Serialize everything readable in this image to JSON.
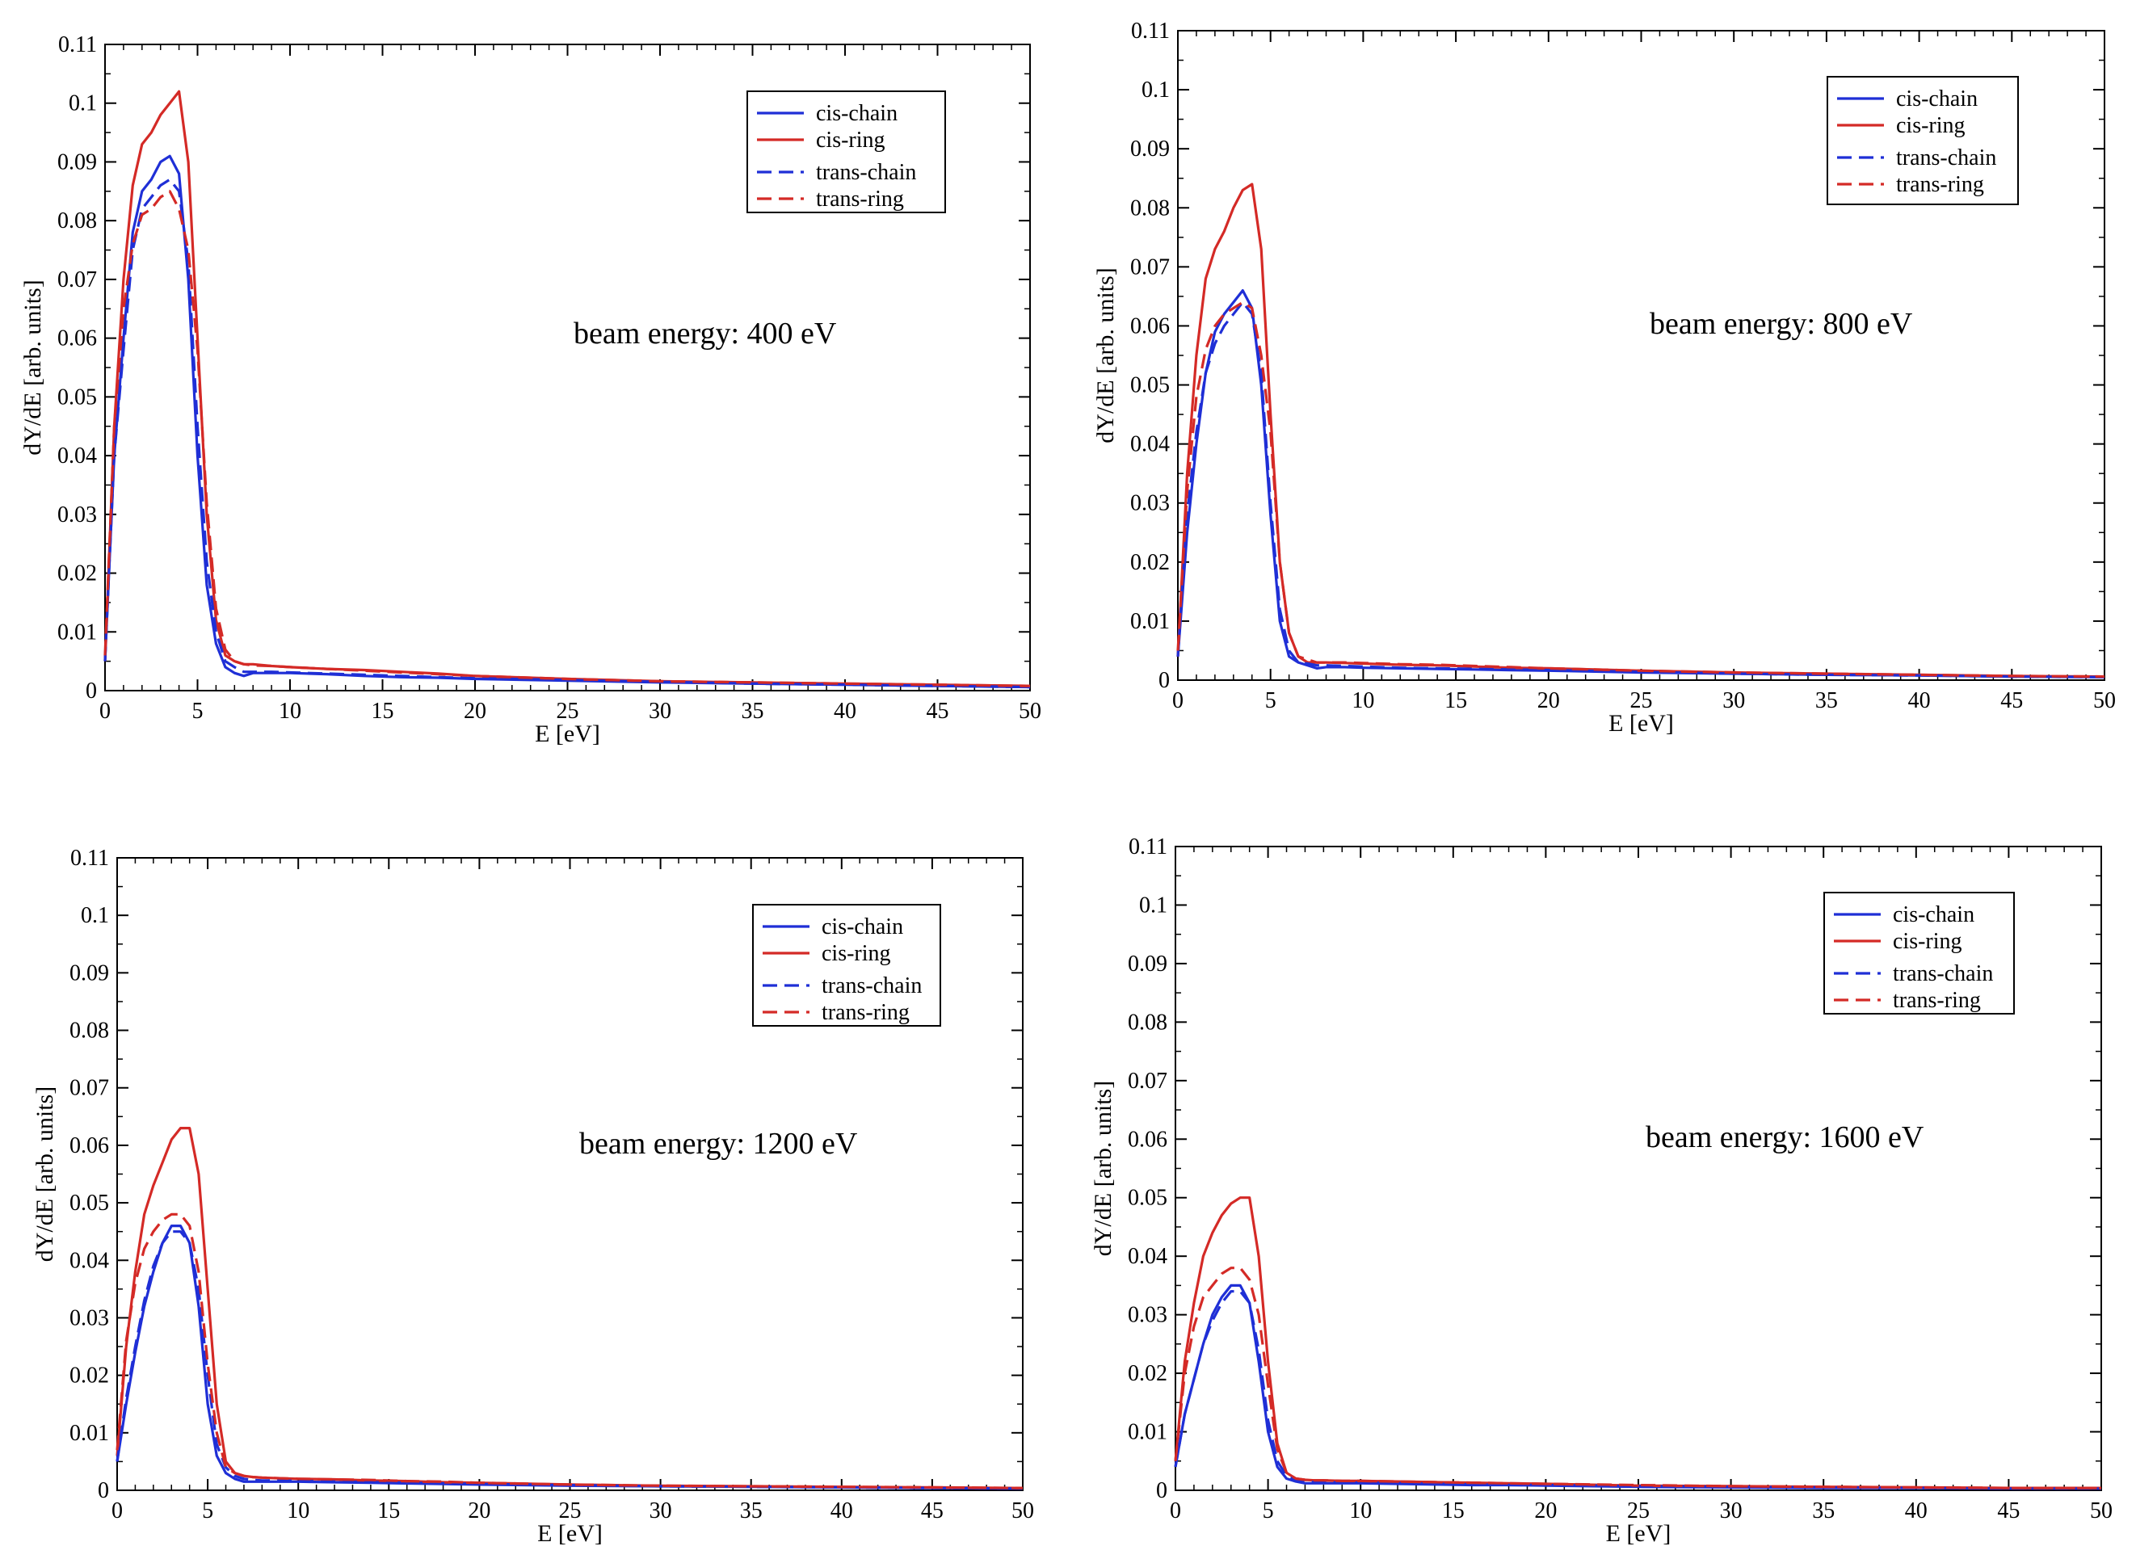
{
  "figure": {
    "colors": {
      "cis-chain": "#1f2fd6",
      "cis-ring": "#d42a26",
      "trans-chain": "#1f2fd6",
      "trans-ring": "#d42a26"
    }
  },
  "chart_data": [
    {
      "type": "line",
      "title": "",
      "annotation": "beam energy: 400 eV",
      "xlabel": "E [eV]",
      "ylabel": "dY/dE [arb. units]",
      "xlim": [
        0,
        50
      ],
      "ylim": [
        0,
        0.11
      ],
      "xticks": [
        0,
        5,
        10,
        15,
        20,
        25,
        30,
        35,
        40,
        45,
        50
      ],
      "yticks": [
        0,
        0.01,
        0.02,
        0.03,
        0.04,
        0.05,
        0.06,
        0.07,
        0.08,
        0.09,
        0.1,
        0.11
      ],
      "legend_position": "top-right",
      "x": [
        0,
        0.5,
        1,
        1.5,
        2,
        2.5,
        3,
        3.5,
        4,
        4.5,
        5,
        5.5,
        6,
        6.5,
        7,
        7.5,
        8,
        9,
        10,
        12,
        14,
        16,
        18,
        20,
        25,
        30,
        35,
        40,
        45,
        50
      ],
      "series": [
        {
          "name": "cis-chain",
          "style": "solid",
          "color": "#1f2fd6",
          "values": [
            0.005,
            0.04,
            0.06,
            0.078,
            0.085,
            0.087,
            0.09,
            0.091,
            0.088,
            0.07,
            0.04,
            0.018,
            0.008,
            0.004,
            0.003,
            0.0025,
            0.003,
            0.003,
            0.003,
            0.0028,
            0.0025,
            0.0023,
            0.0022,
            0.002,
            0.0017,
            0.0014,
            0.0012,
            0.001,
            0.0008,
            0.0006
          ]
        },
        {
          "name": "cis-ring",
          "style": "solid",
          "color": "#d42a26",
          "values": [
            0.005,
            0.045,
            0.07,
            0.086,
            0.093,
            0.095,
            0.098,
            0.1,
            0.102,
            0.09,
            0.06,
            0.03,
            0.012,
            0.006,
            0.005,
            0.0045,
            0.0045,
            0.0042,
            0.004,
            0.0037,
            0.0035,
            0.0032,
            0.0029,
            0.0025,
            0.002,
            0.0016,
            0.0014,
            0.0012,
            0.001,
            0.0008
          ]
        },
        {
          "name": "trans-chain",
          "style": "dashed",
          "color": "#1f2fd6",
          "values": [
            0.005,
            0.04,
            0.058,
            0.075,
            0.082,
            0.084,
            0.086,
            0.087,
            0.085,
            0.073,
            0.045,
            0.022,
            0.01,
            0.005,
            0.004,
            0.0032,
            0.0032,
            0.0032,
            0.0031,
            0.0029,
            0.0027,
            0.0025,
            0.0023,
            0.0021,
            0.0018,
            0.0015,
            0.0012,
            0.001,
            0.0008,
            0.0006
          ]
        },
        {
          "name": "trans-ring",
          "style": "dashed",
          "color": "#d42a26",
          "values": [
            0.006,
            0.045,
            0.065,
            0.076,
            0.081,
            0.082,
            0.084,
            0.085,
            0.082,
            0.075,
            0.058,
            0.032,
            0.014,
            0.007,
            0.005,
            0.0045,
            0.0043,
            0.0042,
            0.004,
            0.0037,
            0.0034,
            0.0031,
            0.0028,
            0.0025,
            0.002,
            0.0016,
            0.0014,
            0.0012,
            0.001,
            0.0008
          ]
        }
      ]
    },
    {
      "type": "line",
      "title": "",
      "annotation": "beam energy: 800 eV",
      "xlabel": "E [eV]",
      "ylabel": "dY/dE [arb. units]",
      "xlim": [
        0,
        50
      ],
      "ylim": [
        0,
        0.11
      ],
      "xticks": [
        0,
        5,
        10,
        15,
        20,
        25,
        30,
        35,
        40,
        45,
        50
      ],
      "yticks": [
        0,
        0.01,
        0.02,
        0.03,
        0.04,
        0.05,
        0.06,
        0.07,
        0.08,
        0.09,
        0.1,
        0.11
      ],
      "legend_position": "top-right",
      "x": [
        0,
        0.5,
        1,
        1.5,
        2,
        2.5,
        3,
        3.5,
        4,
        4.5,
        5,
        5.5,
        6,
        6.5,
        7,
        7.5,
        8,
        9,
        10,
        12,
        14,
        16,
        18,
        20,
        25,
        30,
        35,
        40,
        45,
        50
      ],
      "series": [
        {
          "name": "cis-chain",
          "style": "solid",
          "color": "#1f2fd6",
          "values": [
            0.004,
            0.025,
            0.04,
            0.052,
            0.059,
            0.062,
            0.064,
            0.066,
            0.063,
            0.05,
            0.028,
            0.01,
            0.004,
            0.003,
            0.0025,
            0.002,
            0.0022,
            0.0022,
            0.0021,
            0.002,
            0.0019,
            0.0018,
            0.0017,
            0.0016,
            0.0013,
            0.0011,
            0.0009,
            0.0008,
            0.0006,
            0.0005
          ]
        },
        {
          "name": "cis-ring",
          "style": "solid",
          "color": "#d42a26",
          "values": [
            0.004,
            0.035,
            0.055,
            0.068,
            0.073,
            0.076,
            0.08,
            0.083,
            0.084,
            0.073,
            0.045,
            0.02,
            0.008,
            0.004,
            0.003,
            0.003,
            0.003,
            0.0029,
            0.0028,
            0.0026,
            0.0025,
            0.0023,
            0.0021,
            0.002,
            0.0016,
            0.0013,
            0.0011,
            0.0009,
            0.0007,
            0.0006
          ]
        },
        {
          "name": "trans-chain",
          "style": "dashed",
          "color": "#1f2fd6",
          "values": [
            0.004,
            0.028,
            0.042,
            0.052,
            0.057,
            0.06,
            0.062,
            0.064,
            0.062,
            0.052,
            0.03,
            0.012,
            0.005,
            0.003,
            0.0028,
            0.0025,
            0.0025,
            0.0024,
            0.0023,
            0.0021,
            0.002,
            0.0019,
            0.0018,
            0.0017,
            0.0014,
            0.0011,
            0.0009,
            0.0008,
            0.0006,
            0.0005
          ]
        },
        {
          "name": "trans-ring",
          "style": "dashed",
          "color": "#d42a26",
          "values": [
            0.005,
            0.032,
            0.048,
            0.056,
            0.06,
            0.062,
            0.063,
            0.064,
            0.063,
            0.055,
            0.042,
            0.02,
            0.008,
            0.004,
            0.0035,
            0.003,
            0.003,
            0.003,
            0.0029,
            0.0027,
            0.0026,
            0.0024,
            0.0022,
            0.002,
            0.0016,
            0.0013,
            0.0011,
            0.0009,
            0.0007,
            0.0006
          ]
        }
      ]
    },
    {
      "type": "line",
      "title": "",
      "annotation": "beam energy: 1200 eV",
      "xlabel": "E [eV]",
      "ylabel": "dY/dE [arb. units]",
      "xlim": [
        0,
        50
      ],
      "ylim": [
        0,
        0.11
      ],
      "xticks": [
        0,
        5,
        10,
        15,
        20,
        25,
        30,
        35,
        40,
        45,
        50
      ],
      "yticks": [
        0,
        0.01,
        0.02,
        0.03,
        0.04,
        0.05,
        0.06,
        0.07,
        0.08,
        0.09,
        0.1,
        0.11
      ],
      "legend_position": "top-right",
      "x": [
        0,
        0.5,
        1,
        1.5,
        2,
        2.5,
        3,
        3.5,
        4,
        4.5,
        5,
        5.5,
        6,
        6.5,
        7,
        7.5,
        8,
        9,
        10,
        12,
        14,
        16,
        18,
        20,
        25,
        30,
        35,
        40,
        45,
        50
      ],
      "series": [
        {
          "name": "cis-chain",
          "style": "solid",
          "color": "#1f2fd6",
          "values": [
            0.005,
            0.015,
            0.024,
            0.032,
            0.038,
            0.043,
            0.046,
            0.046,
            0.043,
            0.032,
            0.015,
            0.006,
            0.003,
            0.002,
            0.0015,
            0.0015,
            0.0015,
            0.0015,
            0.0015,
            0.0014,
            0.0013,
            0.0012,
            0.0011,
            0.001,
            0.0008,
            0.0007,
            0.0006,
            0.0005,
            0.0004,
            0.0003
          ]
        },
        {
          "name": "cis-ring",
          "style": "solid",
          "color": "#d42a26",
          "values": [
            0.006,
            0.025,
            0.038,
            0.048,
            0.053,
            0.057,
            0.061,
            0.063,
            0.063,
            0.055,
            0.035,
            0.015,
            0.005,
            0.003,
            0.0025,
            0.0023,
            0.0022,
            0.0021,
            0.002,
            0.0019,
            0.0017,
            0.0016,
            0.0014,
            0.0013,
            0.001,
            0.0008,
            0.0007,
            0.0006,
            0.0005,
            0.0004
          ]
        },
        {
          "name": "trans-chain",
          "style": "dashed",
          "color": "#1f2fd6",
          "values": [
            0.005,
            0.016,
            0.025,
            0.033,
            0.039,
            0.043,
            0.045,
            0.045,
            0.043,
            0.035,
            0.02,
            0.008,
            0.004,
            0.0025,
            0.002,
            0.0018,
            0.0017,
            0.0017,
            0.0016,
            0.0015,
            0.0014,
            0.0013,
            0.0012,
            0.0011,
            0.0009,
            0.0007,
            0.0006,
            0.0005,
            0.0004,
            0.0003
          ]
        },
        {
          "name": "trans-ring",
          "style": "dashed",
          "color": "#d42a26",
          "values": [
            0.007,
            0.026,
            0.036,
            0.042,
            0.045,
            0.047,
            0.048,
            0.048,
            0.046,
            0.038,
            0.022,
            0.01,
            0.004,
            0.003,
            0.0025,
            0.0023,
            0.0022,
            0.0021,
            0.002,
            0.0019,
            0.0018,
            0.0016,
            0.0015,
            0.0013,
            0.001,
            0.0008,
            0.0007,
            0.0006,
            0.0005,
            0.0004
          ]
        }
      ]
    },
    {
      "type": "line",
      "title": "",
      "annotation": "beam energy: 1600 eV",
      "xlabel": "E [eV]",
      "ylabel": "dY/dE [arb. units]",
      "xlim": [
        0,
        50
      ],
      "ylim": [
        0,
        0.11
      ],
      "xticks": [
        0,
        5,
        10,
        15,
        20,
        25,
        30,
        35,
        40,
        45,
        50
      ],
      "yticks": [
        0,
        0.01,
        0.02,
        0.03,
        0.04,
        0.05,
        0.06,
        0.07,
        0.08,
        0.09,
        0.1,
        0.11
      ],
      "legend_position": "top-right",
      "x": [
        0,
        0.5,
        1,
        1.5,
        2,
        2.5,
        3,
        3.5,
        4,
        4.5,
        5,
        5.5,
        6,
        6.5,
        7,
        7.5,
        8,
        9,
        10,
        12,
        14,
        16,
        18,
        20,
        25,
        30,
        35,
        40,
        45,
        50
      ],
      "series": [
        {
          "name": "cis-chain",
          "style": "solid",
          "color": "#1f2fd6",
          "values": [
            0.004,
            0.013,
            0.019,
            0.025,
            0.03,
            0.033,
            0.035,
            0.035,
            0.032,
            0.022,
            0.01,
            0.004,
            0.002,
            0.0015,
            0.0012,
            0.0012,
            0.0012,
            0.0012,
            0.0012,
            0.0011,
            0.001,
            0.0009,
            0.0009,
            0.0008,
            0.0006,
            0.0005,
            0.0004,
            0.0004,
            0.0003,
            0.0003
          ]
        },
        {
          "name": "cis-ring",
          "style": "solid",
          "color": "#d42a26",
          "values": [
            0.005,
            0.022,
            0.032,
            0.04,
            0.044,
            0.047,
            0.049,
            0.05,
            0.05,
            0.04,
            0.022,
            0.008,
            0.003,
            0.002,
            0.0018,
            0.0017,
            0.0017,
            0.0016,
            0.0016,
            0.0015,
            0.0014,
            0.0013,
            0.0012,
            0.0011,
            0.0008,
            0.0007,
            0.0006,
            0.0005,
            0.0004,
            0.0004
          ]
        },
        {
          "name": "trans-chain",
          "style": "dashed",
          "color": "#1f2fd6",
          "values": [
            0.004,
            0.013,
            0.019,
            0.025,
            0.029,
            0.032,
            0.034,
            0.034,
            0.032,
            0.024,
            0.012,
            0.005,
            0.0025,
            0.0017,
            0.0015,
            0.0014,
            0.0014,
            0.0013,
            0.0013,
            0.0012,
            0.0011,
            0.001,
            0.0009,
            0.0009,
            0.0007,
            0.0006,
            0.0005,
            0.0004,
            0.0003,
            0.0003
          ]
        },
        {
          "name": "trans-ring",
          "style": "dashed",
          "color": "#d42a26",
          "values": [
            0.005,
            0.02,
            0.028,
            0.033,
            0.035,
            0.037,
            0.038,
            0.038,
            0.036,
            0.03,
            0.018,
            0.007,
            0.003,
            0.002,
            0.0018,
            0.0017,
            0.0017,
            0.0016,
            0.0016,
            0.0015,
            0.0014,
            0.0013,
            0.0012,
            0.0011,
            0.0009,
            0.0007,
            0.0006,
            0.0005,
            0.0004,
            0.0004
          ]
        }
      ]
    }
  ]
}
